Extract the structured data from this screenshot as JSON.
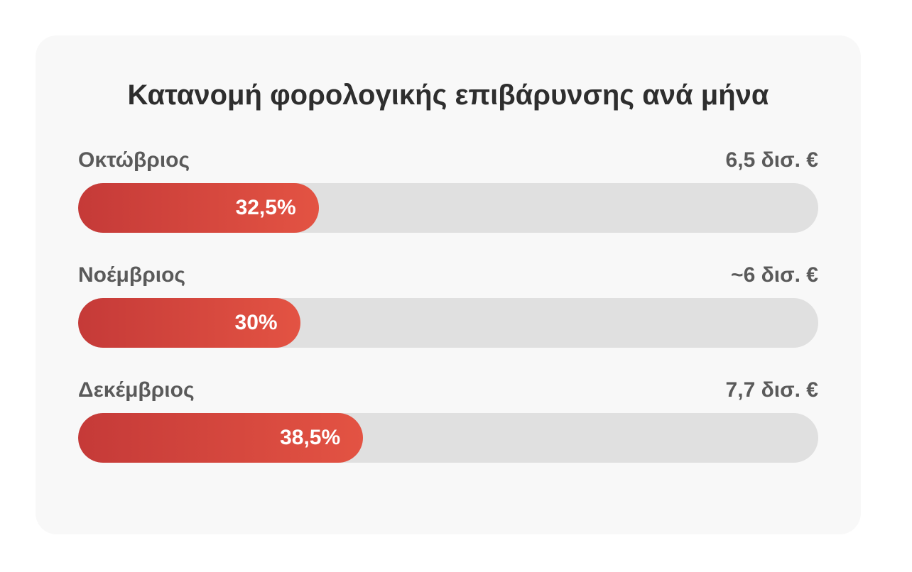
{
  "chart_data": {
    "type": "bar",
    "title": "Κατανομή φορολογικής επιβάρυνσης ανά μήνα",
    "categories": [
      "Οκτώβριος",
      "Νοέμβριος",
      "Δεκέμβριος"
    ],
    "amounts": [
      "6,5 δισ. €",
      "~6 δισ. €",
      "7,7 δισ. €"
    ],
    "values": [
      32.5,
      30,
      38.5
    ],
    "value_labels": [
      "32,5%",
      "30%",
      "38,5%"
    ],
    "ylim": [
      0,
      100
    ],
    "orientation": "horizontal",
    "grid": false
  },
  "colors": {
    "bar_start": "#c53a38",
    "bar_end": "#e35343",
    "track": "#e0e0e0",
    "card": "#f8f8f8"
  }
}
